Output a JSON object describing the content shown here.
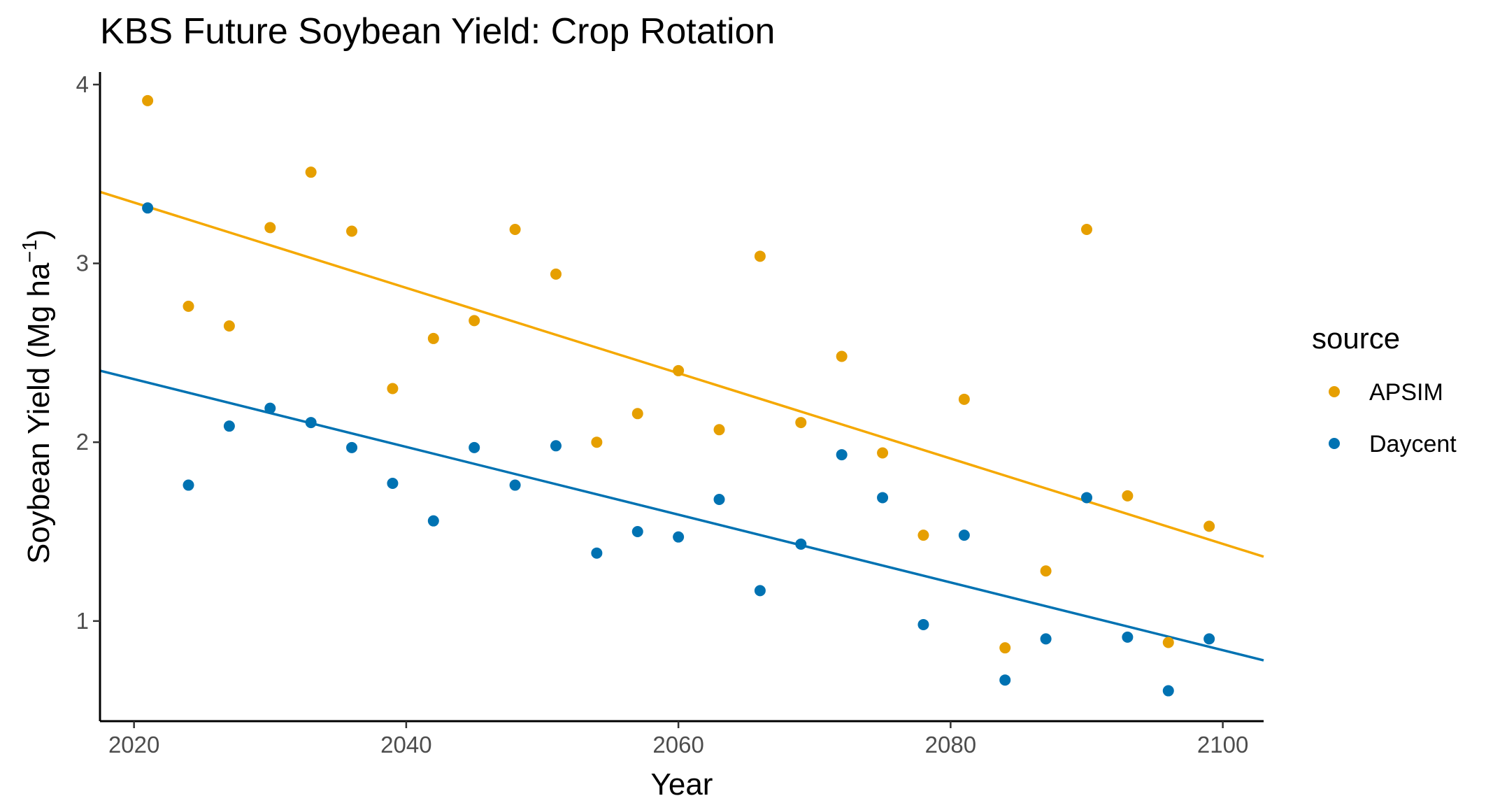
{
  "chart_data": {
    "type": "scatter",
    "title": "KBS Future Soybean Yield:  Crop Rotation",
    "xlabel": "Year",
    "ylabel": "Soybean Yield (Mg ha",
    "ylabel_superscript": "−1",
    "ylabel_suffix": ")",
    "xlim": [
      2017.5,
      2103
    ],
    "ylim": [
      0.44,
      4.07
    ],
    "x_ticks": [
      2020,
      2040,
      2060,
      2080,
      2100
    ],
    "y_ticks": [
      1,
      2,
      3,
      4
    ],
    "grid": false,
    "legend": {
      "title": "source",
      "position": "right"
    },
    "series": [
      {
        "name": "APSIM",
        "color": "#E69F00",
        "line_color": "#F5A800",
        "points": [
          [
            2021,
            3.91
          ],
          [
            2024,
            2.76
          ],
          [
            2027,
            2.65
          ],
          [
            2030,
            3.2
          ],
          [
            2033,
            3.51
          ],
          [
            2036,
            3.18
          ],
          [
            2039,
            2.3
          ],
          [
            2042,
            2.58
          ],
          [
            2045,
            2.68
          ],
          [
            2048,
            3.19
          ],
          [
            2051,
            2.94
          ],
          [
            2054,
            2.0
          ],
          [
            2057,
            2.16
          ],
          [
            2060,
            2.4
          ],
          [
            2063,
            2.07
          ],
          [
            2066,
            3.04
          ],
          [
            2069,
            2.11
          ],
          [
            2072,
            2.48
          ],
          [
            2075,
            1.94
          ],
          [
            2078,
            1.48
          ],
          [
            2081,
            2.24
          ],
          [
            2084,
            0.85
          ],
          [
            2087,
            1.28
          ],
          [
            2090,
            3.19
          ],
          [
            2093,
            1.7
          ],
          [
            2096,
            0.88
          ],
          [
            2099,
            1.53
          ]
        ],
        "trend": {
          "x": [
            2017.5,
            2103
          ],
          "y": [
            3.4,
            1.36
          ]
        }
      },
      {
        "name": "Daycent",
        "color": "#0072B2",
        "line_color": "#0072B2",
        "points": [
          [
            2021,
            3.31
          ],
          [
            2024,
            1.76
          ],
          [
            2027,
            2.09
          ],
          [
            2030,
            2.19
          ],
          [
            2033,
            2.11
          ],
          [
            2036,
            1.97
          ],
          [
            2039,
            1.77
          ],
          [
            2042,
            1.56
          ],
          [
            2045,
            1.97
          ],
          [
            2048,
            1.76
          ],
          [
            2051,
            1.98
          ],
          [
            2054,
            1.38
          ],
          [
            2057,
            1.5
          ],
          [
            2060,
            1.47
          ],
          [
            2063,
            1.68
          ],
          [
            2066,
            1.17
          ],
          [
            2069,
            1.43
          ],
          [
            2072,
            1.93
          ],
          [
            2075,
            1.69
          ],
          [
            2078,
            0.98
          ],
          [
            2081,
            1.48
          ],
          [
            2084,
            0.67
          ],
          [
            2087,
            0.9
          ],
          [
            2090,
            1.69
          ],
          [
            2093,
            0.91
          ],
          [
            2096,
            0.61
          ],
          [
            2099,
            0.9
          ]
        ],
        "trend": {
          "x": [
            2017.5,
            2103
          ],
          "y": [
            2.4,
            0.78
          ]
        }
      }
    ]
  }
}
